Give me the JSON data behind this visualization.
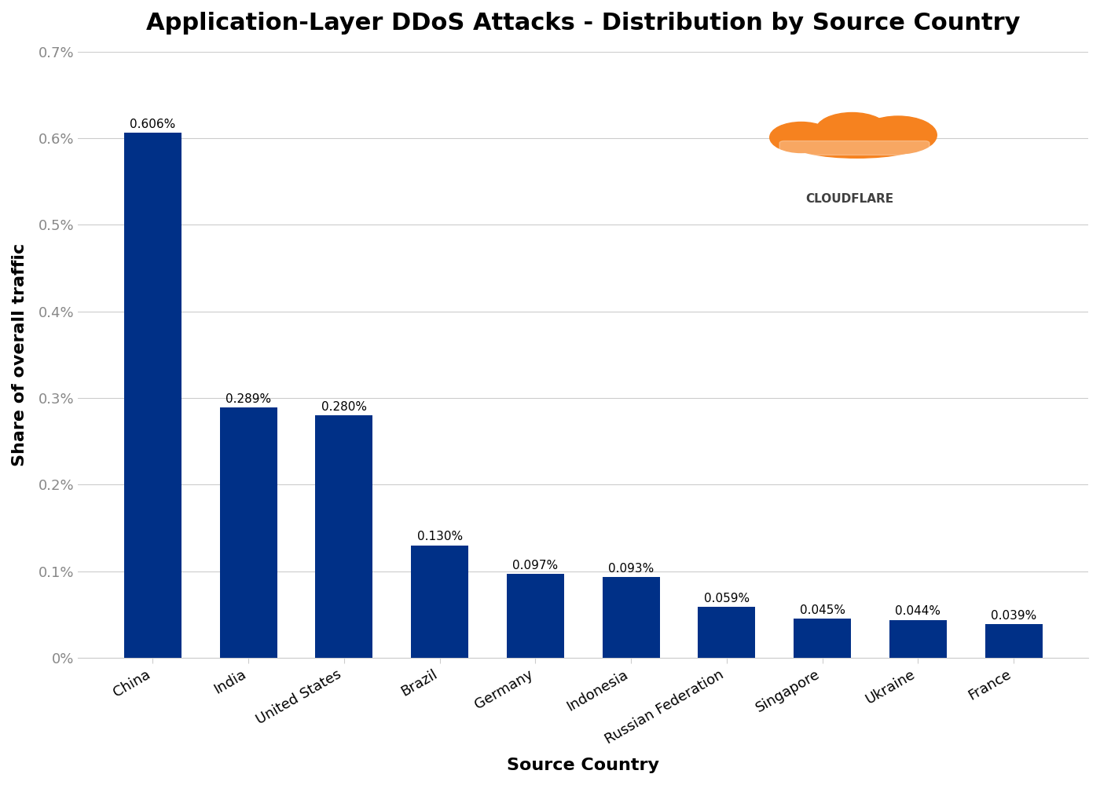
{
  "title": "Application-Layer DDoS Attacks - Distribution by Source Country",
  "xlabel": "Source Country",
  "ylabel": "Share of overall traffic",
  "categories": [
    "China",
    "India",
    "United States",
    "Brazil",
    "Germany",
    "Indonesia",
    "Russian Federation",
    "Singapore",
    "Ukraine",
    "France"
  ],
  "values": [
    0.606,
    0.289,
    0.28,
    0.13,
    0.097,
    0.093,
    0.059,
    0.045,
    0.044,
    0.039
  ],
  "labels": [
    "0.606%",
    "0.289%",
    "0.280%",
    "0.130%",
    "0.097%",
    "0.093%",
    "0.059%",
    "0.045%",
    "0.044%",
    "0.039%"
  ],
  "bar_color": "#003087",
  "background_color": "#ffffff",
  "ylim": [
    0,
    0.7
  ],
  "yticks": [
    0.0,
    0.1,
    0.2,
    0.3,
    0.4,
    0.5,
    0.6,
    0.7
  ],
  "ytick_labels": [
    "0%",
    "0.1%",
    "0.2%",
    "0.3%",
    "0.4%",
    "0.5%",
    "0.6%",
    "0.7%"
  ],
  "title_fontsize": 22,
  "axis_label_fontsize": 16,
  "tick_fontsize": 13,
  "bar_label_fontsize": 11,
  "grid_color": "#cccccc",
  "tick_color": "#888888",
  "cloudflare_text": "CLOUDFLARE",
  "cloudflare_color": "#404040"
}
